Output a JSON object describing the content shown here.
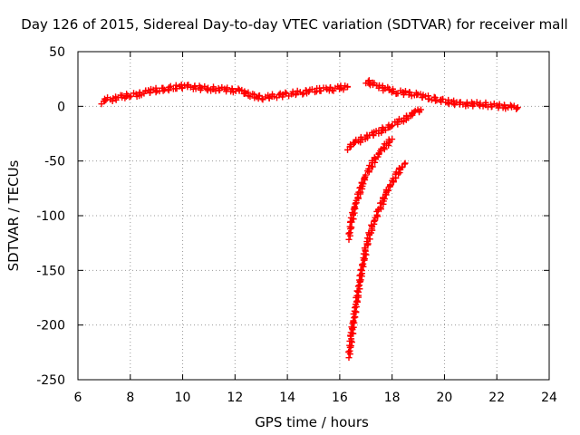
{
  "chart_data": {
    "type": "scatter",
    "title": "Day 126 of 2015, Sidereal Day-to-day VTEC variation (SDTVAR) for receiver mall",
    "xlabel": "GPS time / hours",
    "ylabel": "SDTVAR / TECUs",
    "xlim": [
      6,
      24
    ],
    "ylim": [
      -250,
      50
    ],
    "xticks": [
      "6",
      "8",
      "10",
      "12",
      "14",
      "16",
      "18",
      "20",
      "22",
      "24"
    ],
    "yticks": [
      "50",
      "0",
      "-50",
      "-100",
      "-150",
      "-200",
      "-250"
    ],
    "grid": true,
    "marker": "plus",
    "series": [
      {
        "color": "#ff0000",
        "points": [
          [
            6.9,
            4
          ],
          [
            7.1,
            6
          ],
          [
            7.4,
            7
          ],
          [
            7.7,
            9
          ],
          [
            8.0,
            10
          ],
          [
            8.3,
            11
          ],
          [
            8.6,
            13
          ],
          [
            9.0,
            15
          ],
          [
            9.4,
            16
          ],
          [
            9.8,
            18
          ],
          [
            10.2,
            18
          ],
          [
            10.6,
            17
          ],
          [
            11.0,
            16
          ],
          [
            11.4,
            16
          ],
          [
            11.8,
            15
          ],
          [
            12.2,
            14
          ],
          [
            12.5,
            11
          ],
          [
            12.8,
            9
          ],
          [
            13.1,
            8
          ],
          [
            13.4,
            9
          ],
          [
            13.7,
            10
          ],
          [
            14.0,
            11
          ],
          [
            14.3,
            12
          ],
          [
            14.6,
            13
          ],
          [
            14.9,
            14
          ],
          [
            15.2,
            15
          ],
          [
            15.5,
            16
          ],
          [
            15.8,
            16
          ],
          [
            16.0,
            17
          ],
          [
            16.2,
            17
          ],
          [
            16.3,
            18
          ]
        ]
      },
      {
        "color": "#ff0000",
        "points": [
          [
            17.0,
            23
          ],
          [
            17.3,
            20
          ],
          [
            17.6,
            17
          ],
          [
            17.9,
            15
          ],
          [
            18.2,
            13
          ],
          [
            18.6,
            12
          ],
          [
            19.0,
            10
          ],
          [
            19.4,
            8
          ],
          [
            19.8,
            6
          ],
          [
            20.2,
            4
          ],
          [
            20.6,
            2
          ],
          [
            21.0,
            2
          ],
          [
            21.4,
            2
          ],
          [
            21.8,
            1
          ],
          [
            22.2,
            0
          ],
          [
            22.6,
            -1
          ],
          [
            22.8,
            -1
          ]
        ]
      },
      {
        "color": "#ff0000",
        "points": [
          [
            16.3,
            -38
          ],
          [
            16.6,
            -33
          ],
          [
            17.0,
            -28
          ],
          [
            17.5,
            -23
          ],
          [
            18.0,
            -17
          ],
          [
            18.5,
            -11
          ],
          [
            18.9,
            -5
          ],
          [
            19.1,
            -3
          ]
        ]
      },
      {
        "color": "#ff0000",
        "points": [
          [
            16.35,
            -120
          ],
          [
            16.45,
            -105
          ],
          [
            16.6,
            -90
          ],
          [
            16.8,
            -75
          ],
          [
            17.0,
            -63
          ],
          [
            17.3,
            -50
          ],
          [
            17.6,
            -40
          ],
          [
            17.9,
            -32
          ],
          [
            18.0,
            -30
          ]
        ]
      },
      {
        "color": "#ff0000",
        "points": [
          [
            16.35,
            -228
          ],
          [
            16.45,
            -210
          ],
          [
            16.6,
            -185
          ],
          [
            16.8,
            -155
          ],
          [
            17.0,
            -130
          ],
          [
            17.2,
            -112
          ],
          [
            17.5,
            -95
          ],
          [
            17.8,
            -78
          ],
          [
            18.1,
            -65
          ],
          [
            18.4,
            -54
          ],
          [
            18.5,
            -52
          ]
        ]
      }
    ]
  }
}
